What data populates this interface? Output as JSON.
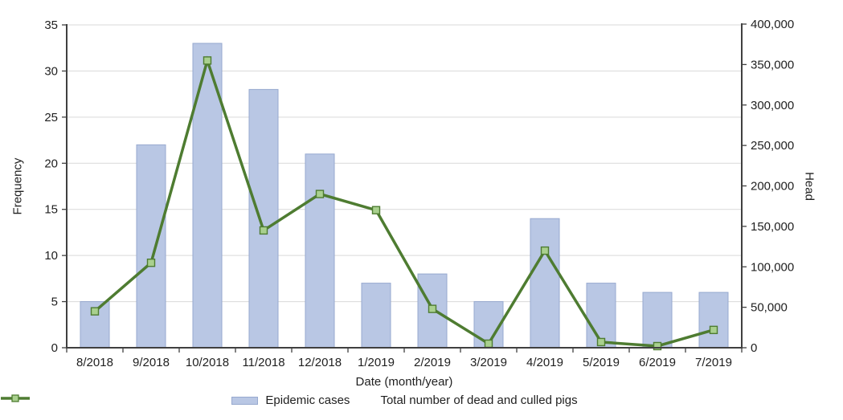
{
  "chart_data": {
    "type": "combo-bar-line",
    "categories": [
      "8/2018",
      "9/2018",
      "10/2018",
      "11/2018",
      "12/2018",
      "1/2019",
      "2/2019",
      "3/2019",
      "4/2019",
      "5/2019",
      "6/2019",
      "7/2019"
    ],
    "series": [
      {
        "name": "Epidemic cases",
        "type": "bar",
        "axis": "left",
        "values": [
          5,
          22,
          33,
          28,
          21,
          7,
          8,
          5,
          14,
          7,
          6,
          6
        ]
      },
      {
        "name": "Total number of dead and culled pigs",
        "type": "line",
        "axis": "right",
        "values": [
          45000,
          105000,
          355000,
          145000,
          190000,
          170000,
          48000,
          5000,
          120000,
          7000,
          2000,
          22000
        ]
      }
    ],
    "xlabel": "Date (month/year)",
    "left_axis": {
      "label": "Frequency",
      "min": 0,
      "max": 35,
      "step": 5,
      "tick_labels": [
        "0",
        "5",
        "10",
        "15",
        "20",
        "25",
        "30",
        "35"
      ]
    },
    "right_axis": {
      "label": "Head",
      "min": 0,
      "max": 400000,
      "step": 50000,
      "tick_labels": [
        "0",
        "50,000",
        "100,000",
        "150,000",
        "200,000",
        "250,000",
        "300,000",
        "350,000",
        "400,000"
      ]
    },
    "grid": true,
    "legend_position": "bottom",
    "colors": {
      "bar_fill": "#b9c7e4",
      "bar_border": "#97a9cf",
      "line": "#4e7c31",
      "marker_fill": "#a9d08e",
      "marker_border": "#4e7c31",
      "gridline": "#d9d9d9",
      "axis": "#404040",
      "text": "#1f1f1f",
      "background": "#ffffff"
    }
  }
}
